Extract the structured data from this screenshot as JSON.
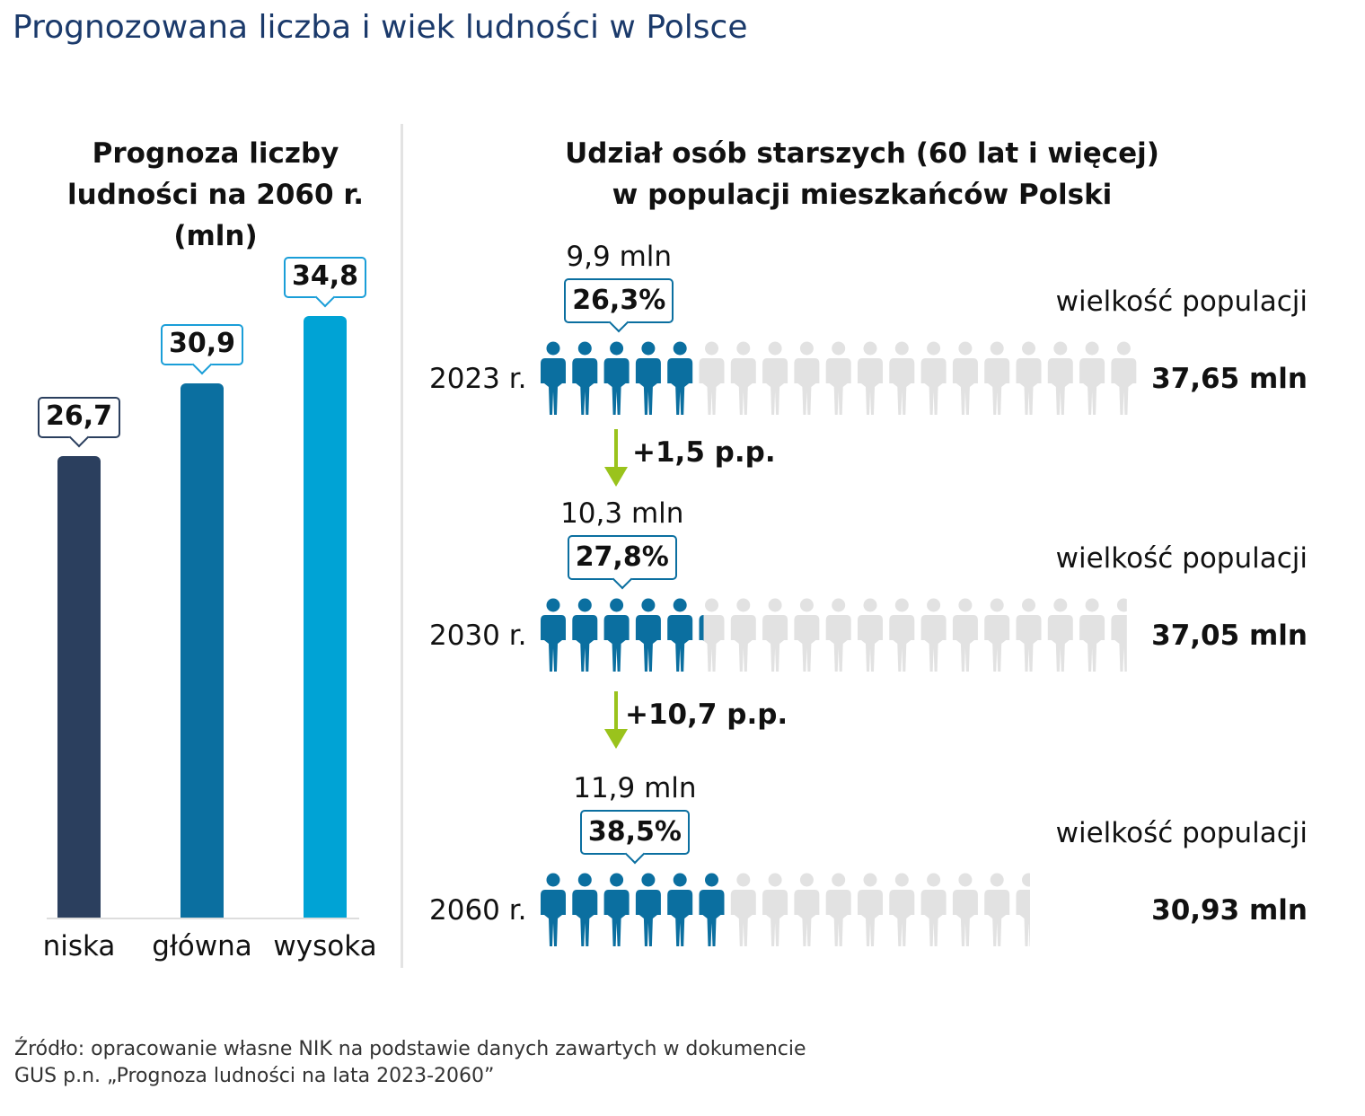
{
  "title": "Prognozowana liczba i wiek ludności w Polsce",
  "source_line1": "Źródło: opracowanie własne NIK na podstawie danych zawartych w dokumencie",
  "source_line2": "GUS p.n. „Prognoza ludności na lata 2023-2060”",
  "colors": {
    "bar_niska": "#2b3f5e",
    "bar_glowna": "#0b6fa0",
    "bar_wysoka": "#00a3d5",
    "people_filled": "#0b6fa0",
    "people_empty": "#e2e2e2",
    "arrow": "#9ac31c",
    "callout_border": "#1a9ed8"
  },
  "chart_data": [
    {
      "type": "bar",
      "title_line1": "Prognoza liczby",
      "title_line2": "ludności na 2060 r.",
      "title_line3": "(mln)",
      "categories": [
        "niska",
        "główna",
        "wysoka"
      ],
      "values": [
        26.7,
        30.9,
        34.8
      ],
      "value_labels": [
        "26,7",
        "30,9",
        "34,8"
      ],
      "ylim": [
        0,
        37.5
      ],
      "grid": false
    },
    {
      "type": "pictogram",
      "title_line1": "Udział osób starszych (60 lat i więcej)",
      "title_line2": "w populacji mieszkańców Polski",
      "rows": [
        {
          "year": "2023 r.",
          "elderly": "9,9 mln",
          "share": 26.3,
          "share_label": "26,3%",
          "population_caption": "wielkość populacji",
          "population": "37,65 mln",
          "population_value": 37.65
        },
        {
          "year": "2030 r.",
          "elderly": "10,3 mln",
          "share": 27.8,
          "share_label": "27,8%",
          "population_caption": "wielkość populacji",
          "population": "37,05 mln",
          "population_value": 37.05
        },
        {
          "year": "2060 r.",
          "elderly": "11,9 mln",
          "share": 38.5,
          "share_label": "38,5%",
          "population_caption": "wielkość populacji",
          "population": "30,93 mln",
          "population_value": 30.93
        }
      ],
      "changes": [
        "+1,5 p.p.",
        "+10,7 p.p."
      ]
    }
  ]
}
